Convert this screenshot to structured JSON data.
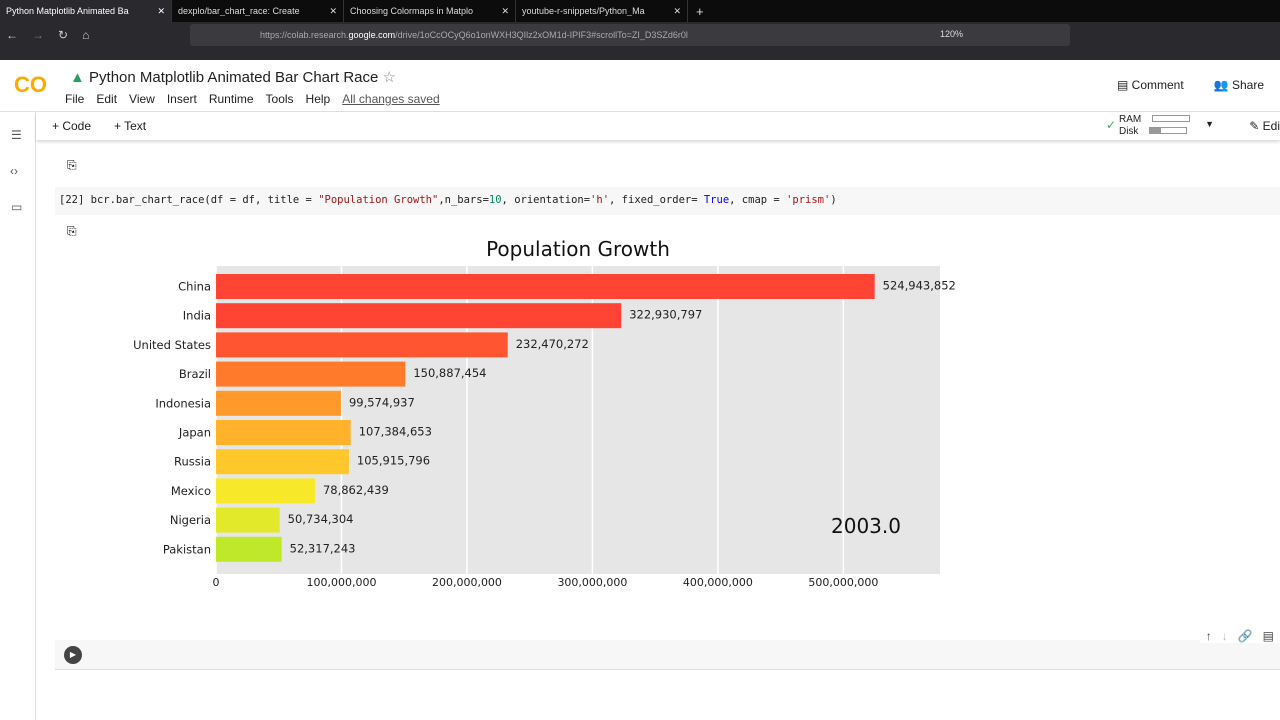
{
  "browser": {
    "tabs": [
      "Python Matplotlib Animated Ba",
      "dexplo/bar_chart_race: Create",
      "Choosing Colormaps in Matplo",
      "youtube-r-snippets/Python_Ma"
    ],
    "url_prefix": "https://colab.research.",
    "url_domain": "google.com",
    "url_suffix": "/drive/1oCcOCyQ6o1onWXH3QIlz2xOM1d-IPIF3#scrollTo=ZI_D3SZd6r0l",
    "zoom": "120%"
  },
  "colab": {
    "logo": "CO",
    "title": "Python Matplotlib Animated Bar Chart Race",
    "menu": [
      "File",
      "Edit",
      "View",
      "Insert",
      "Runtime",
      "Tools",
      "Help"
    ],
    "saved": "All changes saved",
    "comment": "Comment",
    "share": "Share",
    "add_code": "+ Code",
    "add_text": "+ Text",
    "ram": "RAM",
    "disk": "Disk",
    "edit": "Edi"
  },
  "cell": {
    "index": "[22]",
    "code_a": " bcr.bar_chart_race(df = df, title = ",
    "code_str1": "\"Population Growth\"",
    "code_b": ",n_bars=",
    "code_num": "10",
    "code_c": ", orientation=",
    "code_str2": "'h'",
    "code_d": ", fixed_order= ",
    "code_kw": "True",
    "code_e": ", cmap = ",
    "code_str3": "'prism'",
    "code_f": ")"
  },
  "chart_data": {
    "type": "bar",
    "orientation": "horizontal",
    "title": "Population Growth",
    "period_label": "2003.0",
    "categories": [
      "China",
      "India",
      "United States",
      "Brazil",
      "Indonesia",
      "Japan",
      "Russia",
      "Mexico",
      "Nigeria",
      "Pakistan"
    ],
    "values": [
      524943852,
      322930797,
      232470272,
      150887454,
      99574937,
      107384653,
      105915796,
      78862439,
      50734304,
      52317243
    ],
    "value_labels": [
      "524,943,852",
      "322,930,797",
      "232,470,272",
      "150,887,454",
      "99,574,937",
      "107,384,653",
      "105,915,796",
      "78,862,439",
      "50,734,304",
      "52,317,243"
    ],
    "colors": [
      "#ff4433",
      "#ff4433",
      "#ff5530",
      "#ff7a2a",
      "#ff9a2a",
      "#ffb22a",
      "#ffc82a",
      "#f8e82a",
      "#e2e82a",
      "#c0e82a"
    ],
    "xticks": [
      0,
      100000000,
      200000000,
      300000000,
      400000000,
      500000000
    ],
    "xtick_labels": [
      "0",
      "100,000,000",
      "200,000,000",
      "300,000,000",
      "400,000,000",
      "500,000,000"
    ],
    "xlim": [
      0,
      577000000
    ],
    "grid": true
  }
}
